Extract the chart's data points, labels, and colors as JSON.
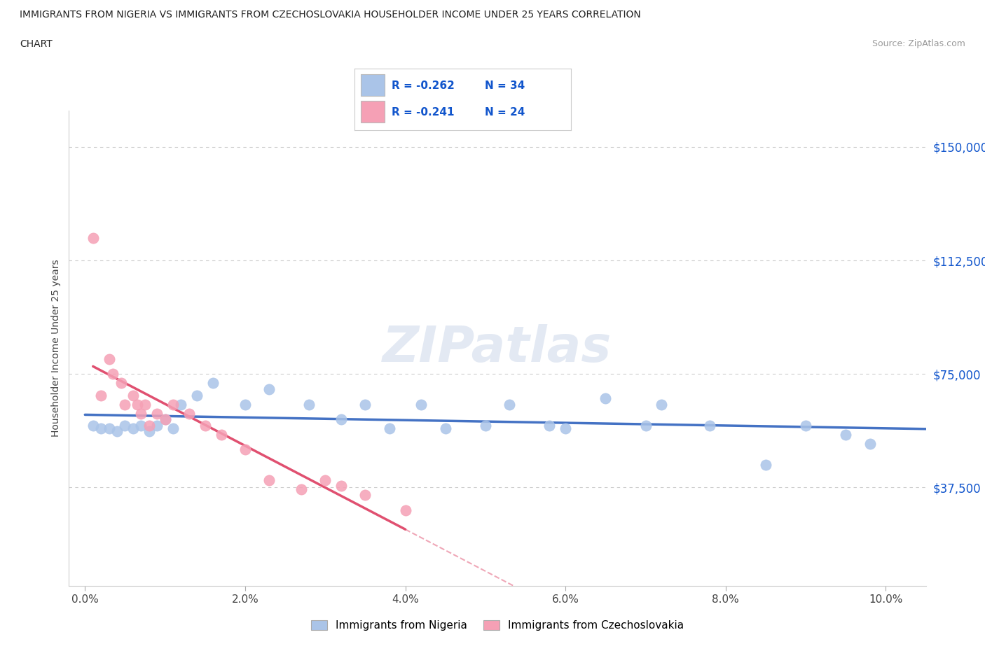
{
  "title_line1": "IMMIGRANTS FROM NIGERIA VS IMMIGRANTS FROM CZECHOSLOVAKIA HOUSEHOLDER INCOME UNDER 25 YEARS CORRELATION",
  "title_line2": "CHART",
  "source": "Source: ZipAtlas.com",
  "ylabel": "Householder Income Under 25 years",
  "xtick_labels": [
    "0.0%",
    "2.0%",
    "4.0%",
    "6.0%",
    "8.0%",
    "10.0%"
  ],
  "xtick_vals": [
    0.0,
    2.0,
    4.0,
    6.0,
    8.0,
    10.0
  ],
  "ytick_labels": [
    "$37,500",
    "$75,000",
    "$112,500",
    "$150,000"
  ],
  "ytick_vals": [
    37500,
    75000,
    112500,
    150000
  ],
  "ylim": [
    5000,
    162000
  ],
  "xlim": [
    -0.2,
    10.5
  ],
  "watermark": "ZIPatlas",
  "nigeria_color": "#aac4e8",
  "czechoslovakia_color": "#f5a0b5",
  "nigeria_R": -0.262,
  "nigeria_N": 34,
  "czechoslovakia_R": -0.241,
  "czechoslovakia_N": 24,
  "nigeria_line_color": "#4472c4",
  "czechoslovakia_line_color": "#e05070",
  "R_text_color": "#1155cc",
  "nigeria_x": [
    0.1,
    0.2,
    0.3,
    0.4,
    0.5,
    0.6,
    0.7,
    0.8,
    0.9,
    1.0,
    1.1,
    1.2,
    1.4,
    1.6,
    2.0,
    2.3,
    2.8,
    3.2,
    3.5,
    3.8,
    4.2,
    4.5,
    5.0,
    5.3,
    5.8,
    6.0,
    6.5,
    7.0,
    7.2,
    7.8,
    8.5,
    9.0,
    9.5,
    9.8
  ],
  "nigeria_y": [
    58000,
    57000,
    57000,
    56000,
    58000,
    57000,
    58000,
    56000,
    58000,
    60000,
    57000,
    65000,
    68000,
    72000,
    65000,
    70000,
    65000,
    60000,
    65000,
    57000,
    65000,
    57000,
    58000,
    65000,
    58000,
    57000,
    67000,
    58000,
    65000,
    58000,
    45000,
    58000,
    55000,
    52000
  ],
  "czechoslovakia_x": [
    0.1,
    0.2,
    0.3,
    0.35,
    0.45,
    0.5,
    0.6,
    0.65,
    0.7,
    0.75,
    0.8,
    0.9,
    1.0,
    1.1,
    1.3,
    1.5,
    1.7,
    2.0,
    2.3,
    2.7,
    3.0,
    3.2,
    3.5,
    4.0
  ],
  "czechoslovakia_y": [
    120000,
    68000,
    80000,
    75000,
    72000,
    65000,
    68000,
    65000,
    62000,
    65000,
    58000,
    62000,
    60000,
    65000,
    62000,
    58000,
    55000,
    50000,
    40000,
    37000,
    40000,
    38000,
    35000,
    30000
  ],
  "grid_color": "#cccccc"
}
